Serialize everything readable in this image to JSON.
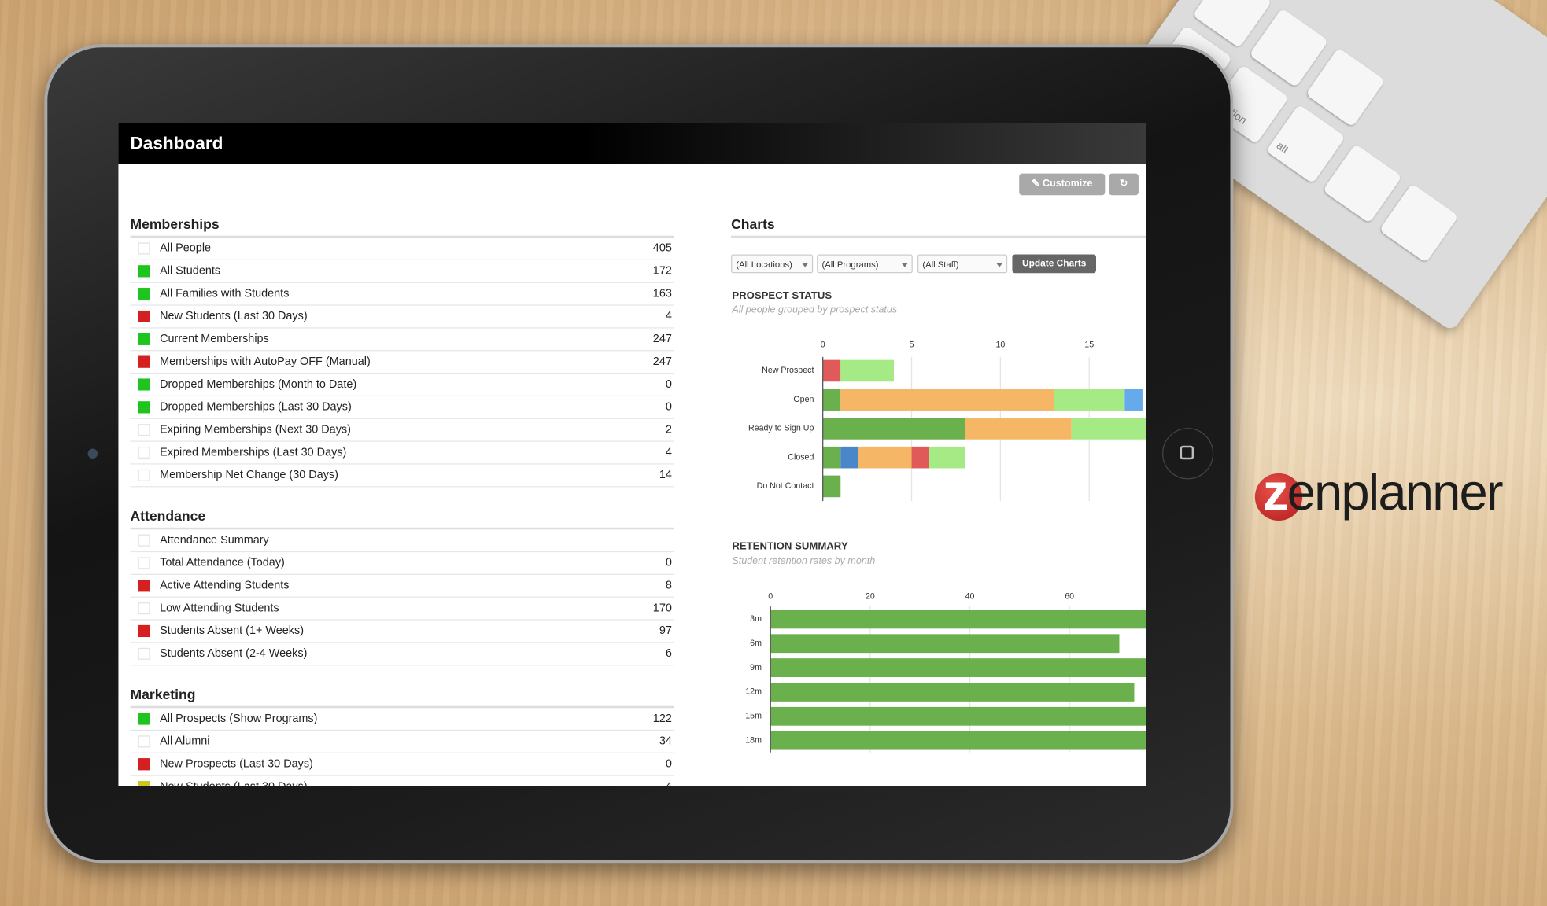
{
  "header": {
    "title": "Dashboard"
  },
  "toolbar": {
    "customize": "Customize"
  },
  "sections": [
    {
      "title": "Memberships",
      "rows": [
        {
          "label": "All People",
          "value": 405
        },
        {
          "label": "All Students",
          "value": 172,
          "status": "#1ec51e"
        },
        {
          "label": "All Families with Students",
          "value": 163,
          "status": "#1ec51e"
        },
        {
          "label": "New Students (Last 30 Days)",
          "value": 4,
          "status": "#d42020"
        },
        {
          "label": "Current Memberships",
          "value": 247,
          "status": "#1ec51e"
        },
        {
          "label": "Memberships with AutoPay OFF (Manual)",
          "value": 247,
          "status": "#d42020"
        },
        {
          "label": "Dropped Memberships (Month to Date)",
          "value": 0,
          "status": "#1ec51e"
        },
        {
          "label": "Dropped Memberships (Last 30 Days)",
          "value": 0,
          "status": "#1ec51e"
        },
        {
          "label": "Expiring Memberships (Next 30 Days)",
          "value": 2
        },
        {
          "label": "Expired Memberships (Last 30 Days)",
          "value": 4
        },
        {
          "label": "Membership Net Change (30 Days)",
          "value": 14
        }
      ]
    },
    {
      "title": "Attendance",
      "rows": [
        {
          "label": "Attendance Summary"
        },
        {
          "label": "Total Attendance (Today)",
          "value": 0
        },
        {
          "label": "Active Attending Students",
          "value": 8,
          "status": "#d42020"
        },
        {
          "label": "Low Attending Students",
          "value": 170
        },
        {
          "label": "Students Absent (1+ Weeks)",
          "value": 97,
          "status": "#d42020"
        },
        {
          "label": "Students Absent (2-4 Weeks)",
          "value": 6
        }
      ]
    },
    {
      "title": "Marketing",
      "rows": [
        {
          "label": "All Prospects (Show Programs)",
          "value": 122,
          "status": "#1ec51e"
        },
        {
          "label": "All Alumni",
          "value": 34
        },
        {
          "label": "New Prospects (Last 30 Days)",
          "value": 0,
          "status": "#d42020"
        },
        {
          "label": "New Students (Last 30 Days)",
          "value": 4,
          "status": "#c8c820"
        }
      ]
    }
  ],
  "charts": {
    "title": "Charts",
    "filters": [
      "(All Locations)",
      "(All Programs)",
      "(All Staff)"
    ],
    "button": "Update Charts",
    "prospect_status": {
      "type": "bar",
      "title": "PROSPECT STATUS",
      "subtitle": "All people grouped by prospect status",
      "categories": [
        "New Prospect",
        "Open",
        "Ready to Sign Up",
        "Closed",
        "Do Not Contact"
      ],
      "segments": [
        [
          {
            "value": 1,
            "color": "#e05a5a"
          },
          {
            "value": 3,
            "color": "#a6ea85"
          }
        ],
        [
          {
            "value": 1,
            "color": "#6ab04c"
          },
          {
            "value": 12,
            "color": "#f5b766"
          },
          {
            "value": 4,
            "color": "#a6ea85"
          },
          {
            "value": 1,
            "color": "#66aaee"
          }
        ],
        [
          {
            "value": 8,
            "color": "#6ab04c"
          },
          {
            "value": 6,
            "color": "#f5b766"
          },
          {
            "value": 5,
            "color": "#a6ea85"
          }
        ],
        [
          {
            "value": 1,
            "color": "#6ab04c"
          },
          {
            "value": 1,
            "color": "#4a86c8"
          },
          {
            "value": 3,
            "color": "#f5b766"
          },
          {
            "value": 1,
            "color": "#e05a5a"
          },
          {
            "value": 2,
            "color": "#a6ea85"
          }
        ],
        [
          {
            "value": 1,
            "color": "#6ab04c"
          }
        ]
      ],
      "xlim": [
        0,
        18.3
      ],
      "xticks": [
        0,
        5,
        10,
        15
      ],
      "grid": true
    },
    "retention_summary": {
      "type": "bar",
      "title": "RETENTION SUMMARY",
      "subtitle": "Student retention rates by month",
      "categories": [
        "3m",
        "6m",
        "9m",
        "12m",
        "15m",
        "18m"
      ],
      "values": [
        80,
        70,
        80,
        73,
        78,
        80
      ],
      "color": "#6ab04c",
      "xlim": [
        0,
        75
      ],
      "xticks": [
        0,
        20,
        40,
        60
      ],
      "grid": true
    }
  },
  "keyboard": [
    "command",
    "option",
    "alt"
  ],
  "brand": "zenplanner"
}
